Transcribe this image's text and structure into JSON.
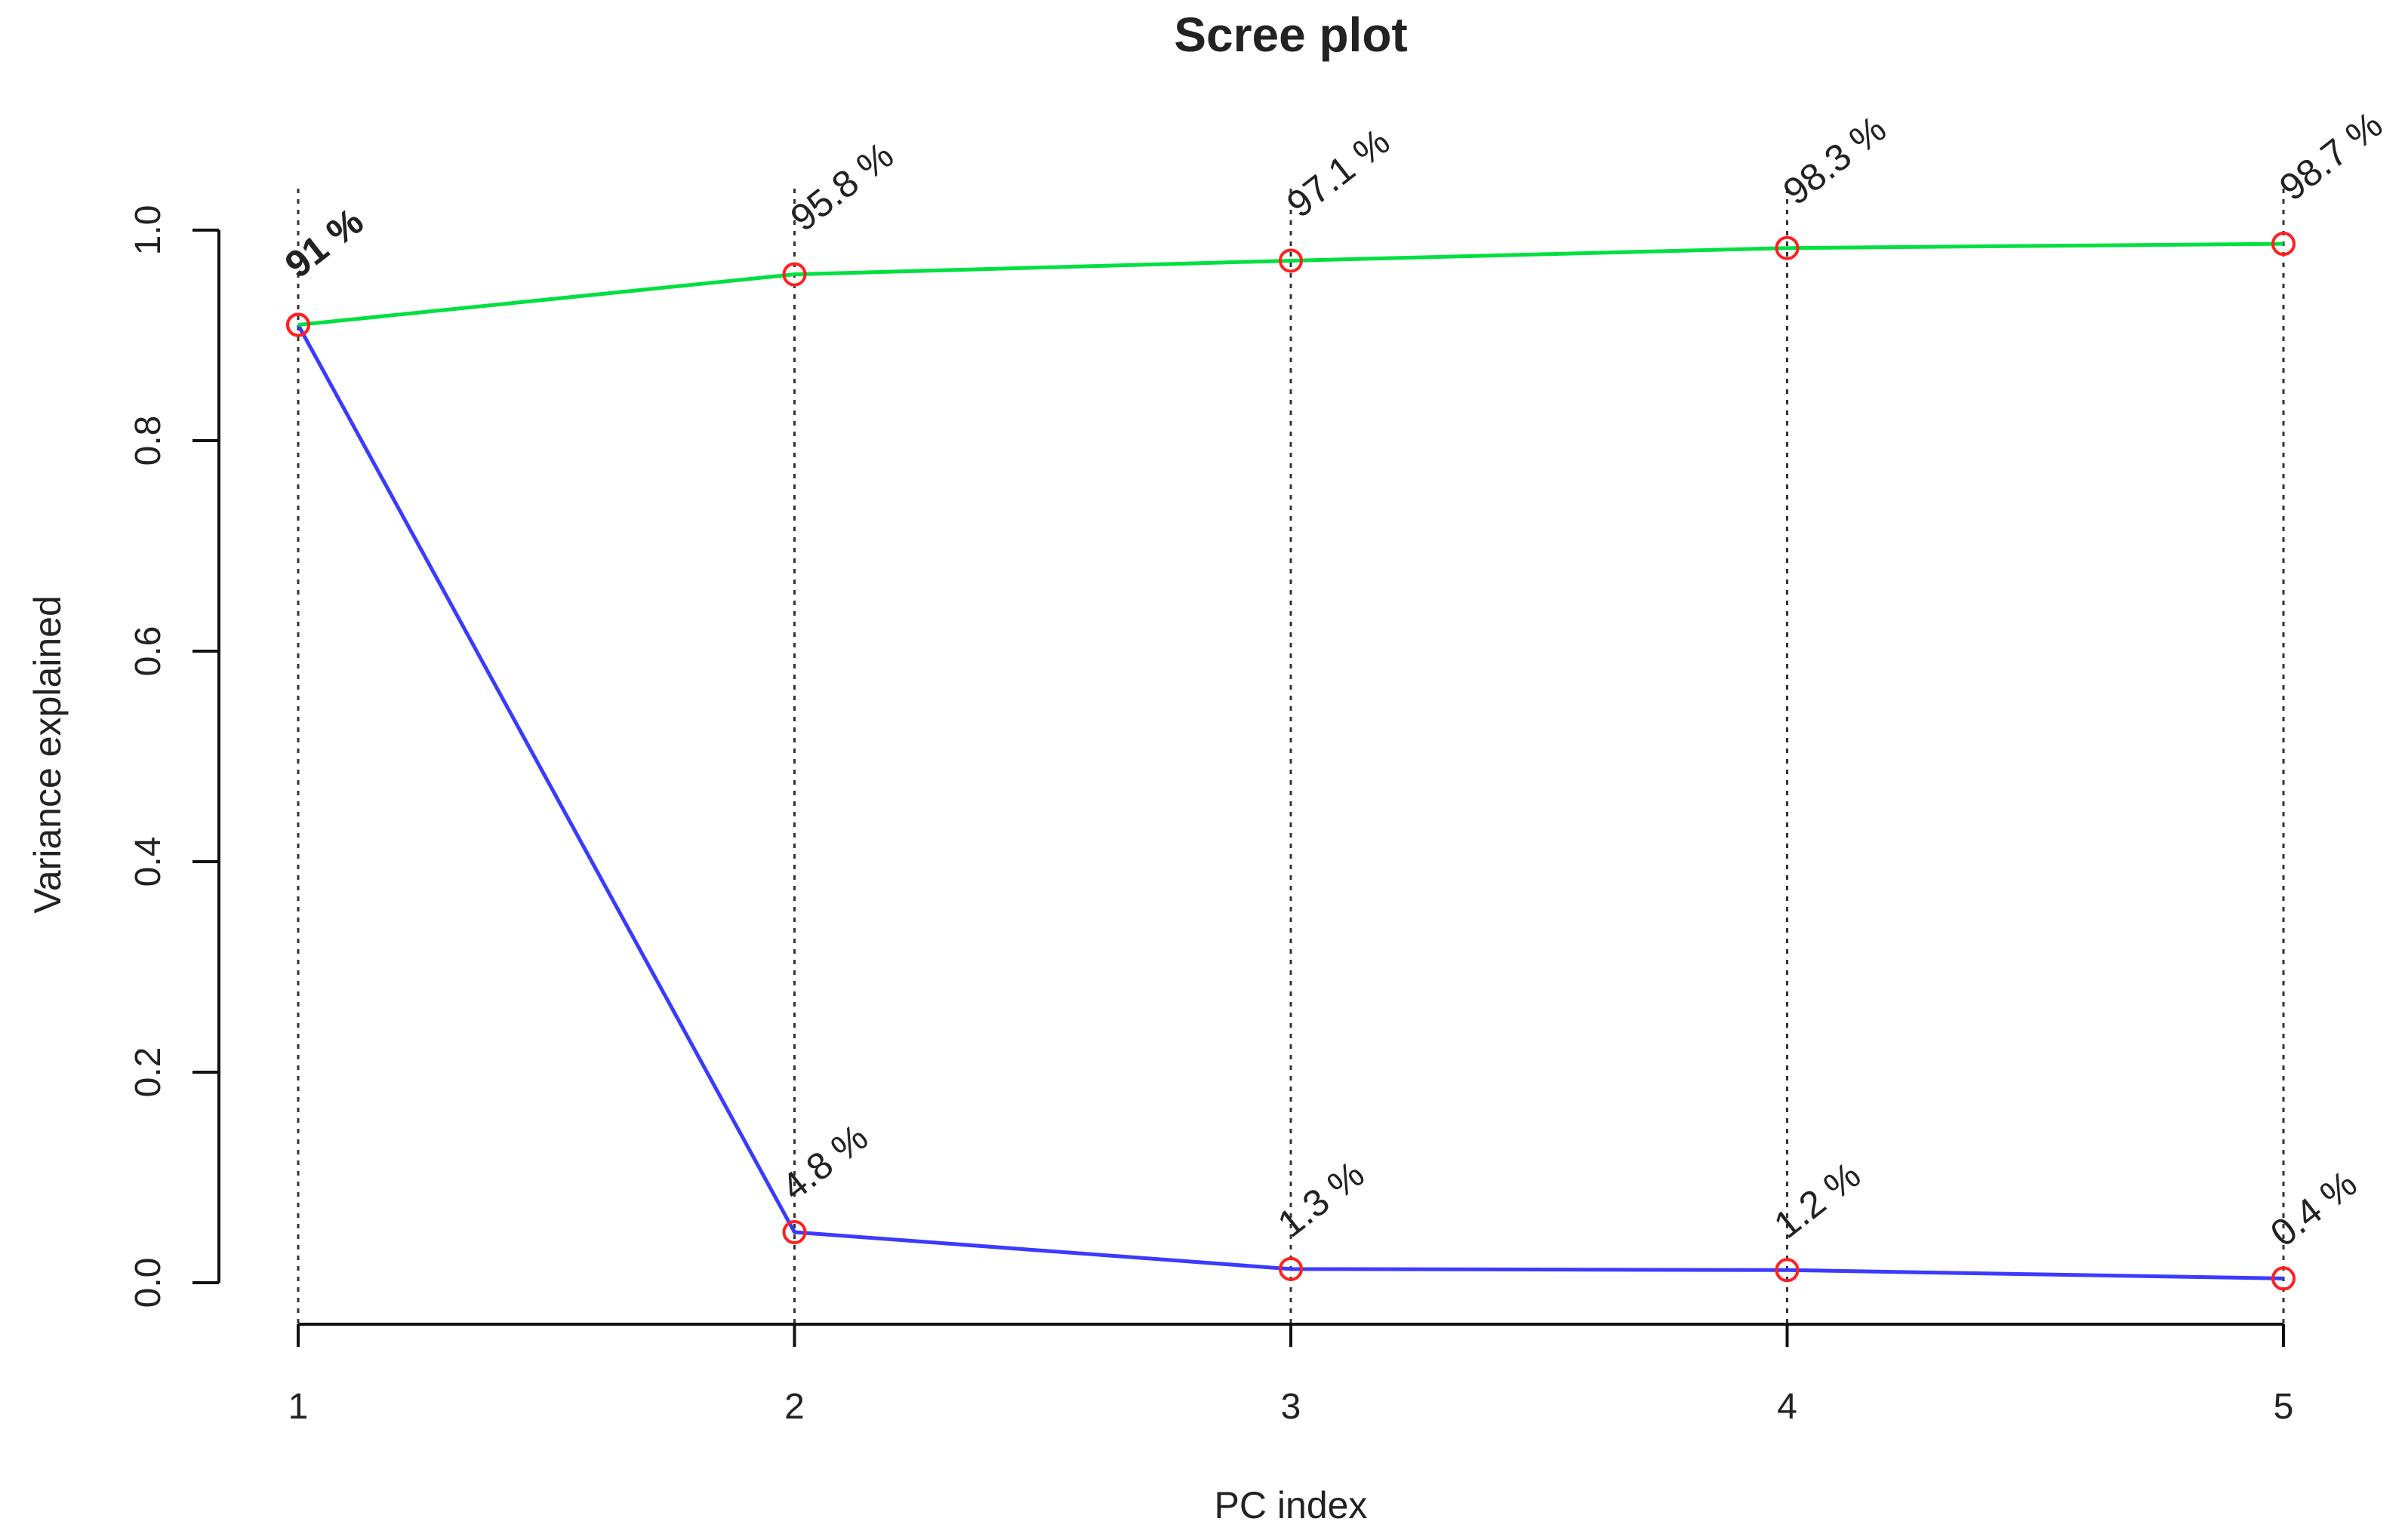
{
  "chart_data": {
    "type": "line",
    "title": "Scree plot",
    "xlabel": "PC index",
    "ylabel": "Variance explained",
    "x": [
      1,
      2,
      3,
      4,
      5
    ],
    "xlim": [
      1,
      5
    ],
    "ylim": [
      0,
      1
    ],
    "yticks": [
      0,
      0.2,
      0.4,
      0.6,
      0.8,
      1
    ],
    "ytick_labels": [
      "0.0",
      "0.2",
      "0.4",
      "0.6",
      "0.8",
      "1.0"
    ],
    "xtick_labels": [
      "1",
      "2",
      "3",
      "4",
      "5"
    ],
    "grid": "dotted vertical lines at each PC index",
    "legend": "none",
    "series": [
      {
        "values": [
          0.91,
          0.048,
          0.013,
          0.012,
          0.004
        ],
        "labels": [
          "91 %",
          "4.8 %",
          "1.3 %",
          "1.2 %",
          "0.4 %"
        ],
        "color": "#3b3bff",
        "marker_color": "#ff2020"
      },
      {
        "values": [
          0.91,
          0.958,
          0.971,
          0.983,
          0.987
        ],
        "labels": [
          "91 %",
          "95.8 %",
          "97.1 %",
          "98.3 %",
          "98.7 %"
        ],
        "color": "#00e040",
        "marker_color": "#ff2020"
      }
    ]
  }
}
